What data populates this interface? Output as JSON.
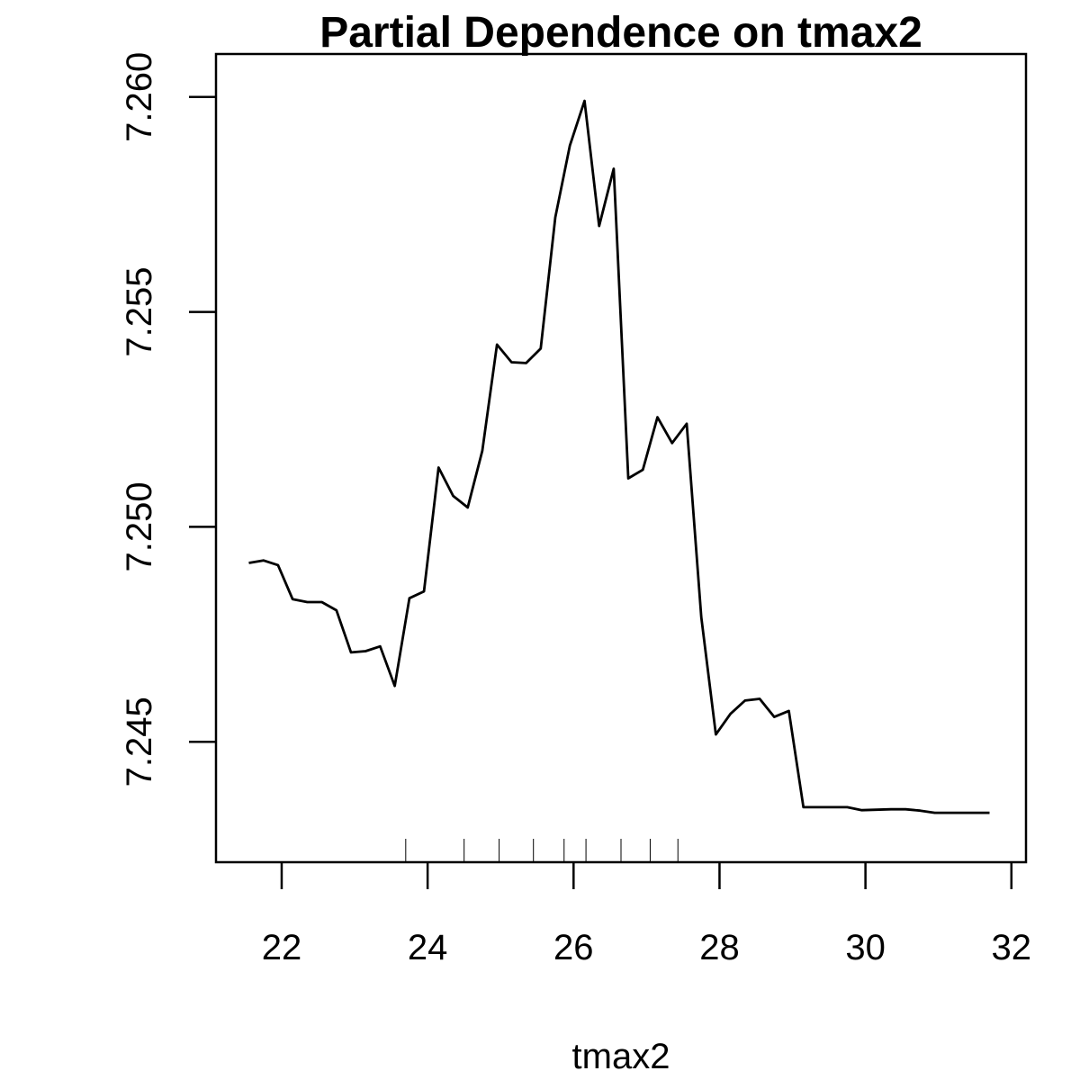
{
  "chart_data": {
    "type": "line",
    "title": "Partial Dependence on tmax2",
    "xlabel": "tmax2",
    "ylabel": "",
    "xlim": [
      21.1,
      32.2
    ],
    "ylim": [
      7.2422,
      7.261
    ],
    "x_ticks": [
      22,
      24,
      26,
      28,
      30,
      32
    ],
    "y_ticks": [
      7.245,
      7.25,
      7.255,
      7.26
    ],
    "x_tick_labels": [
      "22",
      "24",
      "26",
      "28",
      "30",
      "32"
    ],
    "y_tick_labels": [
      "7.245",
      "7.250",
      "7.255",
      "7.260"
    ],
    "grid": false,
    "legend": "none",
    "line_color": "#000000",
    "series": [
      {
        "x": [
          21.55,
          21.75,
          21.95,
          22.15,
          22.35,
          22.55,
          22.75,
          22.95,
          23.15,
          23.35,
          23.55,
          23.75,
          23.95,
          24.15,
          24.35,
          24.55,
          24.75,
          24.95,
          25.15,
          25.35,
          25.55,
          25.75,
          25.95,
          26.15,
          26.35,
          26.55,
          26.75,
          26.95,
          27.15,
          27.35,
          27.55,
          27.75,
          27.95,
          28.15,
          28.35,
          28.55,
          28.75,
          28.95,
          29.15,
          29.35,
          29.55,
          29.75,
          29.95,
          30.15,
          30.35,
          30.55,
          30.75,
          30.95,
          31.15,
          31.35,
          31.55,
          31.7
        ],
        "y": [
          7.24916,
          7.24922,
          7.24911,
          7.24832,
          7.24825,
          7.24825,
          7.24806,
          7.24708,
          7.24711,
          7.24722,
          7.2463,
          7.24834,
          7.2485,
          7.25138,
          7.25072,
          7.25045,
          7.25177,
          7.25424,
          7.25383,
          7.25381,
          7.25415,
          7.2572,
          7.25887,
          7.25991,
          7.257,
          7.25833,
          7.25113,
          7.25133,
          7.25255,
          7.25195,
          7.2524,
          7.2479,
          7.24517,
          7.24565,
          7.24596,
          7.246,
          7.24558,
          7.24572,
          7.24348,
          7.24348,
          7.24348,
          7.24348,
          7.24341,
          7.24342,
          7.24343,
          7.24343,
          7.2434,
          7.24335,
          7.24335,
          7.24335,
          7.24335,
          7.24335
        ]
      }
    ],
    "rug": [
      23.7,
      24.5,
      24.98,
      25.45,
      25.87,
      26.17,
      26.65,
      27.05,
      27.43
    ]
  }
}
